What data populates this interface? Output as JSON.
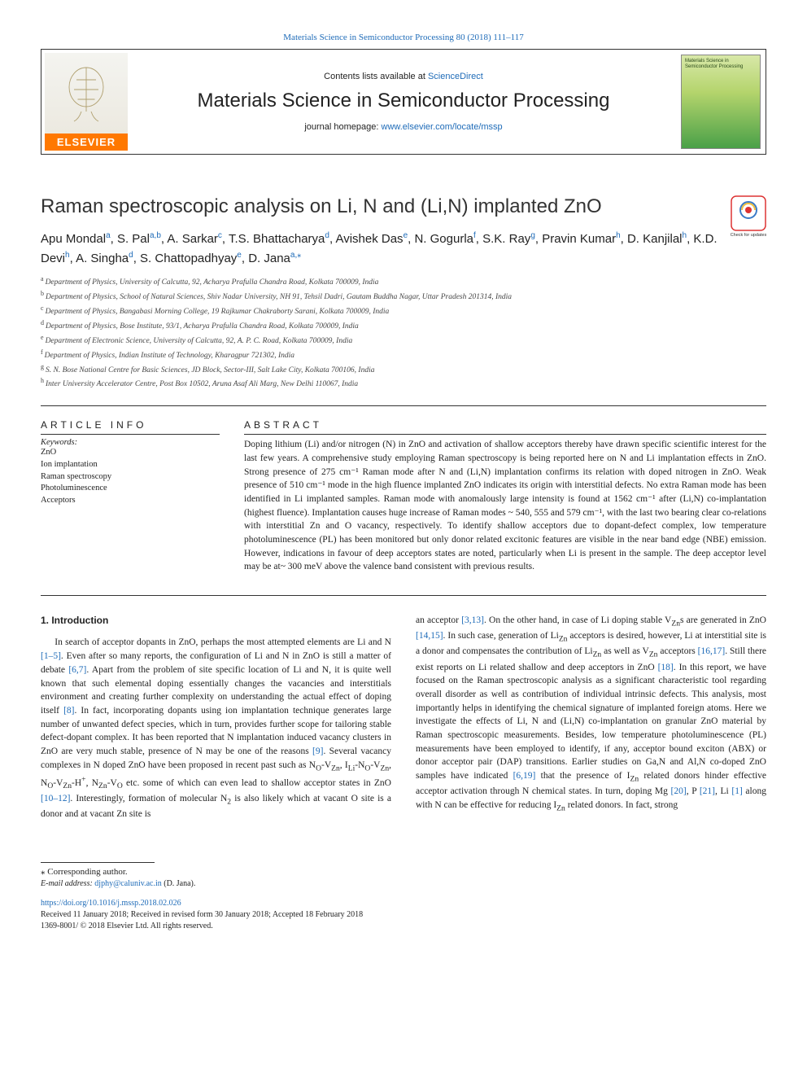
{
  "colors": {
    "link": "#1e6bb8",
    "text": "#222",
    "elsevier_orange": "#ff7800",
    "rule": "#333"
  },
  "top_citation": "Materials Science in Semiconductor Processing 80 (2018) 111–117",
  "masthead": {
    "publisher_word": "ELSEVIER",
    "contents_prefix": "Contents lists available at ",
    "contents_link": "ScienceDirect",
    "journal_name": "Materials Science in Semiconductor Processing",
    "homepage_prefix": "journal homepage: ",
    "homepage_url": "www.elsevier.com/locate/mssp",
    "cover_label": "Materials Science in Semiconductor Processing"
  },
  "check_badge_label": "Check for updates",
  "title": "Raman spectroscopic analysis on Li, N and (Li,N) implanted ZnO",
  "authors_html": "Apu Mondal<sup>a</sup>, S. Pal<sup>a,b</sup>, A. Sarkar<sup>c</sup>, T.S. Bhattacharya<sup>d</sup>, Avishek Das<sup>e</sup>, N. Gogurla<sup>f</sup>, S.K. Ray<sup>g</sup>, Pravin Kumar<sup>h</sup>, D. Kanjilal<sup>h</sup>, K.D. Devi<sup>h</sup>, A. Singha<sup>d</sup>, S. Chattopadhyay<sup>e</sup>, D. Jana<sup>a,</sup><sup class='star'>⁎</sup>",
  "affiliations": [
    {
      "key": "a",
      "text": "Department of Physics, University of Calcutta, 92, Acharya Prafulla Chandra Road, Kolkata 700009, India"
    },
    {
      "key": "b",
      "text": "Department of Physics, School of Natural Sciences, Shiv Nadar University, NH 91, Tehsil Dadri, Gautam Buddha Nagar, Uttar Pradesh 201314, India"
    },
    {
      "key": "c",
      "text": "Department of Physics, Bangabasi Morning College, 19 Rajkumar Chakraborty Sarani, Kolkata 700009, India"
    },
    {
      "key": "d",
      "text": "Department of Physics, Bose Institute, 93/1, Acharya Prafulla Chandra Road, Kolkata 700009, India"
    },
    {
      "key": "e",
      "text": "Department of Electronic Science, University of Calcutta, 92, A. P. C. Road, Kolkata 700009, India"
    },
    {
      "key": "f",
      "text": "Department of Physics, Indian Institute of Technology, Kharagpur 721302, India"
    },
    {
      "key": "g",
      "text": "S. N. Bose National Centre for Basic Sciences, JD Block, Sector-III, Salt Lake City, Kolkata 700106, India"
    },
    {
      "key": "h",
      "text": "Inter University Accelerator Centre, Post Box 10502, Aruna Asaf Ali Marg, New Delhi 110067, India"
    }
  ],
  "article_info_head": "ARTICLE INFO",
  "abstract_head": "ABSTRACT",
  "keywords_label": "Keywords:",
  "keywords": [
    "ZnO",
    "Ion implantation",
    "Raman spectroscopy",
    "Photoluminescence",
    "Acceptors"
  ],
  "abstract": "Doping lithium (Li) and/or nitrogen (N) in ZnO and activation of shallow acceptors thereby have drawn specific scientific interest for the last few years. A comprehensive study employing Raman spectroscopy is being reported here on N and Li implantation effects in ZnO. Strong presence of 275 cm⁻¹ Raman mode after N and (Li,N) implantation confirms its relation with doped nitrogen in ZnO. Weak presence of 510 cm⁻¹ mode in the high fluence implanted ZnO indicates its origin with interstitial defects. No extra Raman mode has been identified in Li implanted samples. Raman mode with anomalously large intensity is found at 1562 cm⁻¹ after (Li,N) co-implantation (highest fluence). Implantation causes huge increase of Raman modes ~ 540, 555 and 579 cm⁻¹, with the last two bearing clear co-relations with interstitial Zn and O vacancy, respectively. To identify shallow acceptors due to dopant-defect complex, low temperature photoluminescence (PL) has been monitored but only donor related excitonic features are visible in the near band edge (NBE) emission. However, indications in favour of deep acceptors states are noted, particularly when Li is present in the sample. The deep acceptor level may be at~ 300 meV above the valence band consistent with previous results.",
  "section1_head": "1. Introduction",
  "body_para1": "In search of acceptor dopants in ZnO, perhaps the most attempted elements are Li and N <span class='cite'>[1–5]</span>. Even after so many reports, the configuration of Li and N in ZnO is still a matter of debate <span class='cite'>[6,7]</span>. Apart from the problem of site specific location of Li and N, it is quite well known that such elemental doping essentially changes the vacancies and interstitials environment and creating further complexity on understanding the actual effect of doping itself <span class='cite'>[8]</span>. In fact, incorporating dopants using ion implantation technique generates large number of unwanted defect species, which in turn, provides further scope for tailoring stable defect-dopant complex. It has been reported that N implantation induced vacancy clusters in ZnO are very much stable, presence of N may be one of the reasons <span class='cite'>[9]</span>. Several vacancy complexes in N doped ZnO have been proposed in recent past such as N<sub>O</sub>-V<sub>Zn</sub>, I<sub>Li</sub>-N<sub>O</sub>-V<sub>Zn</sub>, N<sub>O</sub>-V<sub>Zn</sub>-H<sup>+</sup>, N<sub>Zn</sub>-V<sub>O</sub> etc. some of which can even lead to shallow acceptor states in ZnO <span class='cite'>[10–12]</span>. Interestingly, formation of molecular N<sub>2</sub> is also likely which at vacant O site is a donor and at vacant Zn site is",
  "body_para2": "an acceptor <span class='cite'>[3,13]</span>. On the other hand, in case of Li doping stable V<sub>Zn</sub>s are generated in ZnO <span class='cite'>[14,15]</span>. In such case, generation of Li<sub>Zn</sub> acceptors is desired, however, Li at interstitial site is a donor and compensates the contribution of Li<sub>Zn</sub> as well as V<sub>Zn</sub> acceptors <span class='cite'>[16,17]</span>. Still there exist reports on Li related shallow and deep acceptors in ZnO <span class='cite'>[18]</span>. In this report, we have focused on the Raman spectroscopic analysis as a significant characteristic tool regarding overall disorder as well as contribution of individual intrinsic defects. This analysis, most importantly helps in identifying the chemical signature of implanted foreign atoms. Here we investigate the effects of Li, N and (Li,N) co-implantation on granular ZnO material by Raman spectroscopic measurements. Besides, low temperature photoluminescence (PL) measurements have been employed to identify, if any, acceptor bound exciton (ABX) or donor acceptor pair (DAP) transitions. Earlier studies on Ga,N and Al,N co-doped ZnO samples have indicated <span class='cite'>[6,19]</span> that the presence of I<sub>Zn</sub> related donors hinder effective acceptor activation through N chemical states. In turn, doping Mg <span class='cite'>[20]</span>, P <span class='cite'>[21]</span>, Li <span class='cite'>[1]</span> along with N can be effective for reducing I<sub>Zn</sub> related donors. In fact, strong",
  "footer": {
    "corr": "⁎ Corresponding author.",
    "email_label": "E-mail address: ",
    "email": "djphy@caluniv.ac.in",
    "email_tail": " (D. Jana).",
    "doi": "https://doi.org/10.1016/j.mssp.2018.02.026",
    "received": "Received 11 January 2018; Received in revised form 30 January 2018; Accepted 18 February 2018",
    "issn": "1369-8001/ © 2018 Elsevier Ltd. All rights reserved."
  }
}
